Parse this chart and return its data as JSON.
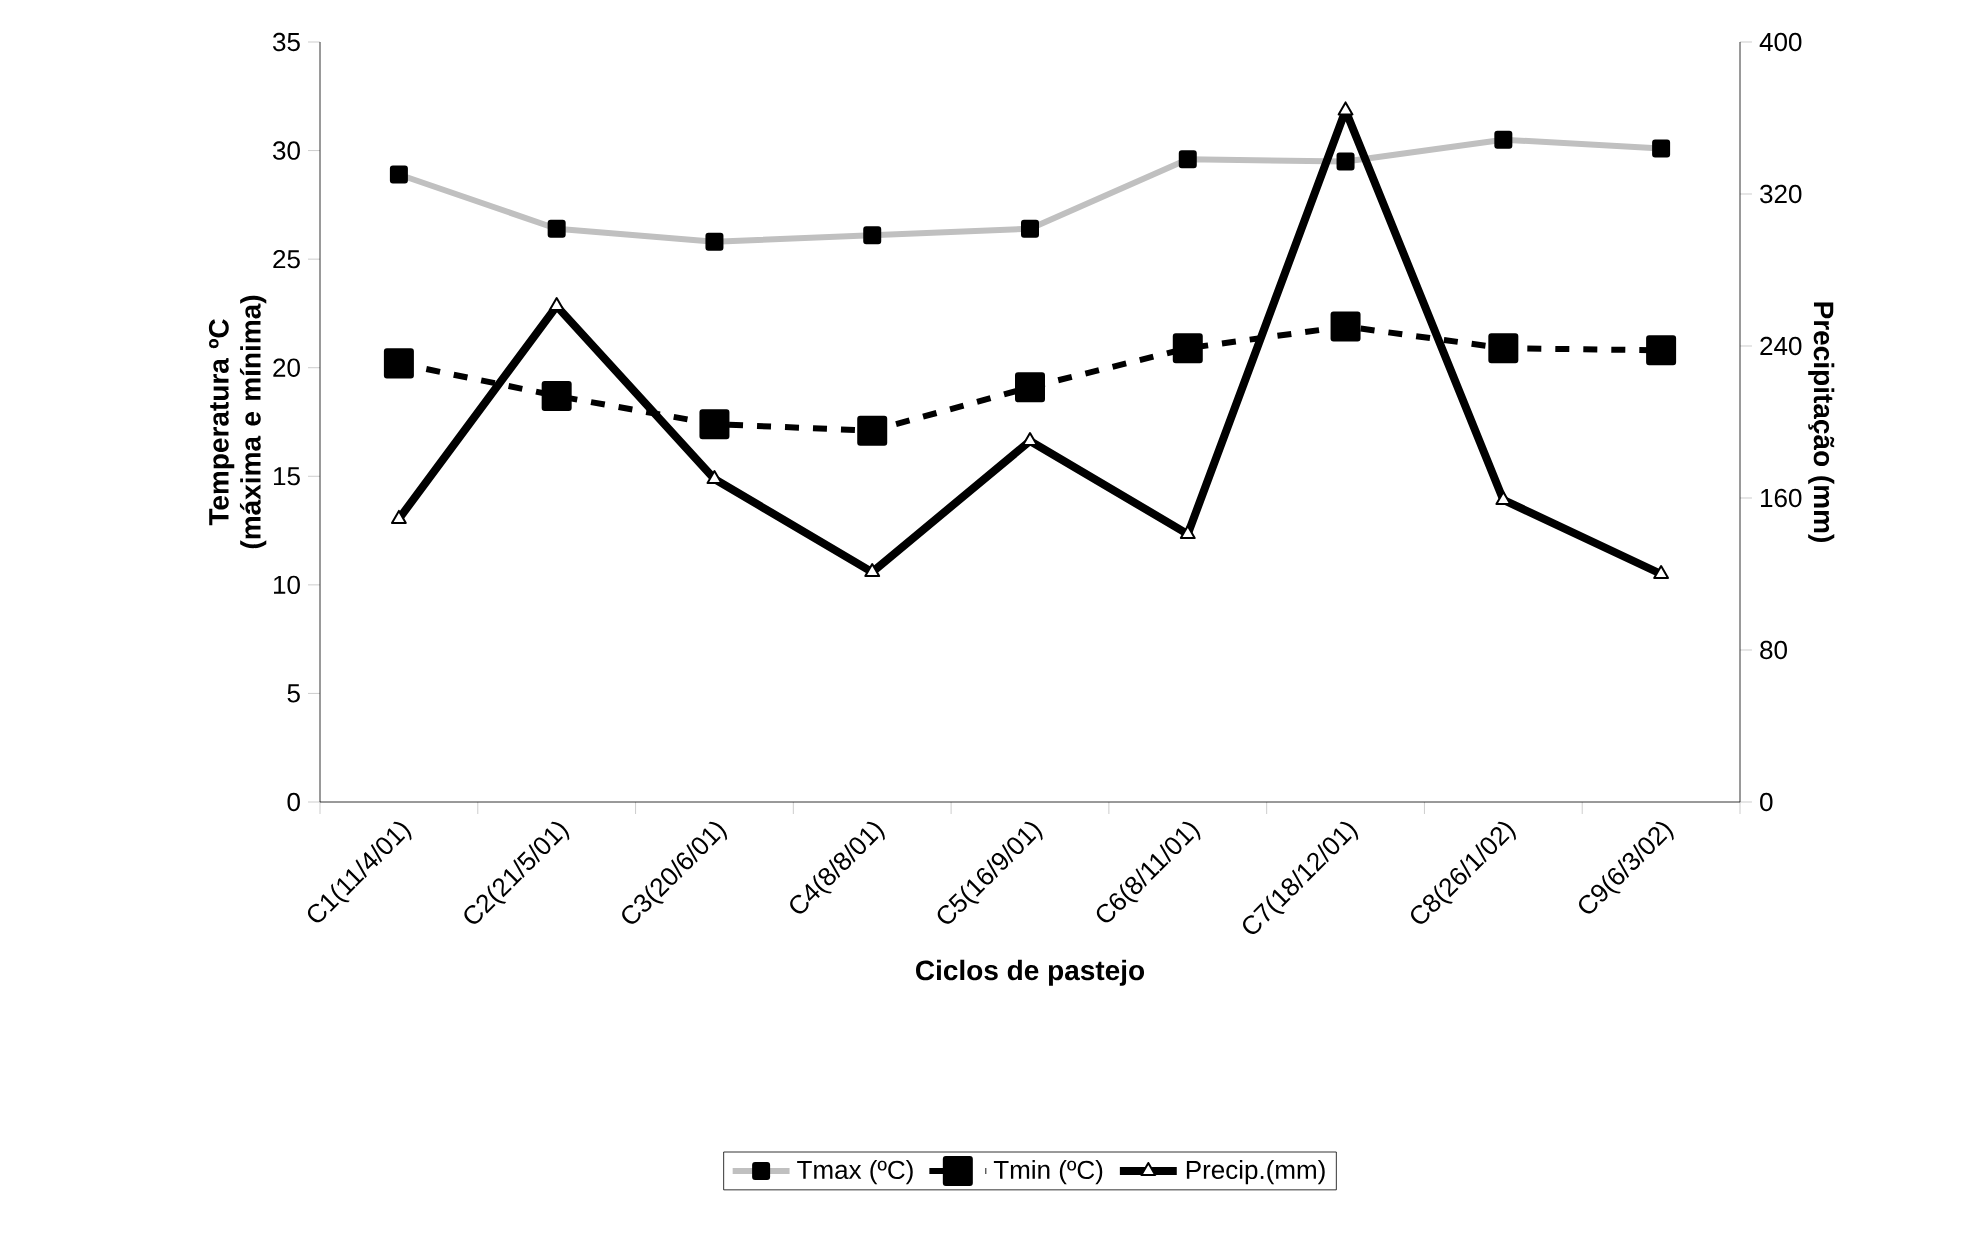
{
  "chart_data": {
    "type": "line",
    "xlabel": "Ciclos de pastejo",
    "ylabel": "Temperatura ºC (máxima e mínima)",
    "y2label": "Precipitação (mm)",
    "categories": [
      "C1(11/4/01)",
      "C2(21/5/01)",
      "C3(20/6/01)",
      "C4(8/8/01)",
      "C5(16/9/01)",
      "C6(8/11/01)",
      "C7(18/12/01)",
      "C8(26/1/02)",
      "C9(6/3/02)"
    ],
    "series": [
      {
        "name": "Tmax (ºC)",
        "color": "#c0c0c0",
        "marker": "square",
        "line_style": "solid",
        "values": [
          28.9,
          26.4,
          25.8,
          26.1,
          26.4,
          29.6,
          29.5,
          30.5,
          30.1
        ]
      },
      {
        "name": "Tmin (ºC)",
        "color": "#000000",
        "marker": "square",
        "line_style": "dashed",
        "values": [
          20.2,
          18.7,
          17.4,
          17.1,
          19.1,
          20.9,
          21.9,
          20.9,
          20.8
        ]
      },
      {
        "name": "Precip.(mm)",
        "color": "#000000",
        "marker": "triangle",
        "line_style": "solid",
        "axis": "y2",
        "values": [
          149,
          261,
          170,
          121,
          190,
          141,
          364,
          159,
          120
        ]
      }
    ],
    "ylim": [
      0,
      35
    ],
    "yticks": [
      0,
      5,
      10,
      15,
      20,
      25,
      30,
      35
    ],
    "y2lim": [
      0,
      400
    ],
    "y2ticks": [
      0,
      80,
      160,
      240,
      320,
      400
    ],
    "legend": "bottom"
  }
}
